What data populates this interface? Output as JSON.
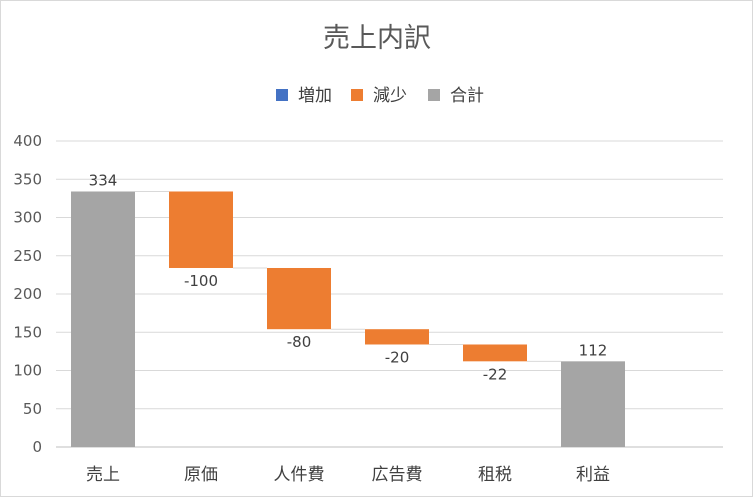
{
  "chart_data": {
    "type": "bar",
    "subtype": "waterfall",
    "title": "売上内訳",
    "legend": {
      "placement": "top",
      "items": [
        {
          "key": "increase",
          "label": "増加",
          "color": "#4472C4"
        },
        {
          "key": "decrease",
          "label": "減少",
          "color": "#ED7D31"
        },
        {
          "key": "total",
          "label": "合計",
          "color": "#A5A5A5"
        }
      ]
    },
    "categories": [
      "売上",
      "原価",
      "人件費",
      "広告費",
      "租税",
      "利益"
    ],
    "values": [
      334,
      -100,
      -80,
      -20,
      -22,
      112
    ],
    "kinds": [
      "total",
      "decrease",
      "decrease",
      "decrease",
      "decrease",
      "total"
    ],
    "data_labels": [
      "334",
      "-100",
      "-80",
      "-20",
      "-22",
      "112"
    ],
    "ylim": [
      0,
      400
    ],
    "yticks": [
      0,
      50,
      100,
      150,
      200,
      250,
      300,
      350,
      400
    ],
    "xlabel": "",
    "ylabel": "",
    "gridlines": true,
    "connector_lines": true
  }
}
